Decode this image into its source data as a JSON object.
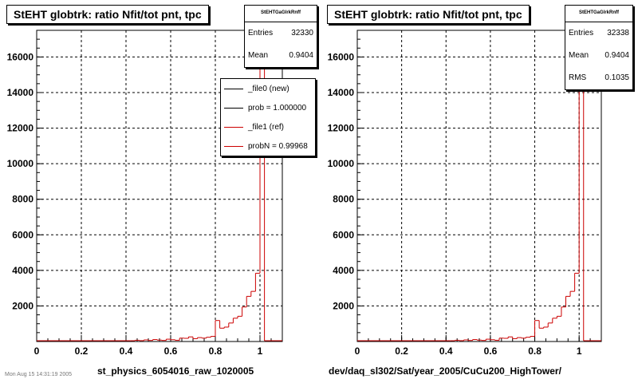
{
  "chart_data": [
    {
      "type": "histogram",
      "title": "StEHT globtrk: ratio Nfit/tot pnt, tpc",
      "xlabel": "st_physics_6054016_raw_1020005",
      "ylabel": "",
      "xlim": [
        0,
        1.1
      ],
      "ylim": [
        0,
        17500
      ],
      "xticks": [
        0,
        0.2,
        0.4,
        0.6,
        0.8,
        1
      ],
      "yticks": [
        2000,
        4000,
        6000,
        8000,
        10000,
        12000,
        14000,
        16000
      ],
      "grid": true,
      "stats": {
        "name": "StEHTGaGlrkRnff",
        "entries_label": "Entries",
        "entries": "32330",
        "mean_label": "Mean",
        "mean": "0.9404"
      },
      "legend": {
        "placement": "top-right",
        "entries": [
          {
            "label": "_file0 (new)",
            "color": "#000000"
          },
          {
            "label": "prob = 1.000000",
            "color": "#000000"
          },
          {
            "label": "_file1 (ref)",
            "color": "#cc0000"
          },
          {
            "label": "probN = 0.99968",
            "color": "#cc0000"
          }
        ]
      },
      "series": [
        {
          "color": "#cc0000",
          "bin_edges": [
            0.42,
            0.44,
            0.46,
            0.48,
            0.5,
            0.52,
            0.54,
            0.56,
            0.58,
            0.6,
            0.62,
            0.64,
            0.66,
            0.68,
            0.7,
            0.72,
            0.74,
            0.76,
            0.78,
            0.8,
            0.82,
            0.84,
            0.86,
            0.88,
            0.9,
            0.92,
            0.94,
            0.96,
            0.98,
            1.0,
            1.02
          ],
          "values": [
            40,
            70,
            50,
            90,
            60,
            110,
            80,
            60,
            130,
            100,
            70,
            190,
            180,
            260,
            160,
            220,
            190,
            240,
            290,
            1180,
            750,
            810,
            1040,
            1310,
            1420,
            1940,
            2540,
            2820,
            3840,
            16500
          ]
        }
      ]
    },
    {
      "type": "histogram",
      "title": "StEHT globtrk: ratio Nfit/tot pnt, tpc",
      "xlabel": "dev/daq_sl302/Sat/year_2005/CuCu200_HighTower/",
      "ylabel": "",
      "xlim": [
        0,
        1.1
      ],
      "ylim": [
        0,
        17500
      ],
      "xticks": [
        0,
        0.2,
        0.4,
        0.6,
        0.8,
        1
      ],
      "yticks": [
        2000,
        4000,
        6000,
        8000,
        10000,
        12000,
        14000,
        16000
      ],
      "grid": true,
      "stats": {
        "name": "StEHTGaGlrkRnff",
        "entries_label": "Entries",
        "entries": "32338",
        "mean_label": "Mean",
        "mean": "0.9404",
        "rms_label": "RMS",
        "rms": "0.1035"
      },
      "series": [
        {
          "color": "#cc0000",
          "bin_edges": [
            0.42,
            0.44,
            0.46,
            0.48,
            0.5,
            0.52,
            0.54,
            0.56,
            0.58,
            0.6,
            0.62,
            0.64,
            0.66,
            0.68,
            0.7,
            0.72,
            0.74,
            0.76,
            0.78,
            0.8,
            0.82,
            0.84,
            0.86,
            0.88,
            0.9,
            0.92,
            0.94,
            0.96,
            0.98,
            1.0,
            1.02
          ],
          "values": [
            40,
            70,
            50,
            90,
            60,
            110,
            80,
            60,
            130,
            100,
            70,
            190,
            180,
            260,
            160,
            220,
            190,
            240,
            290,
            1180,
            750,
            810,
            1040,
            1310,
            1420,
            1940,
            2540,
            2820,
            3840,
            16500
          ]
        }
      ]
    }
  ],
  "footer": "Mon Aug 15 14:31:19 2005"
}
